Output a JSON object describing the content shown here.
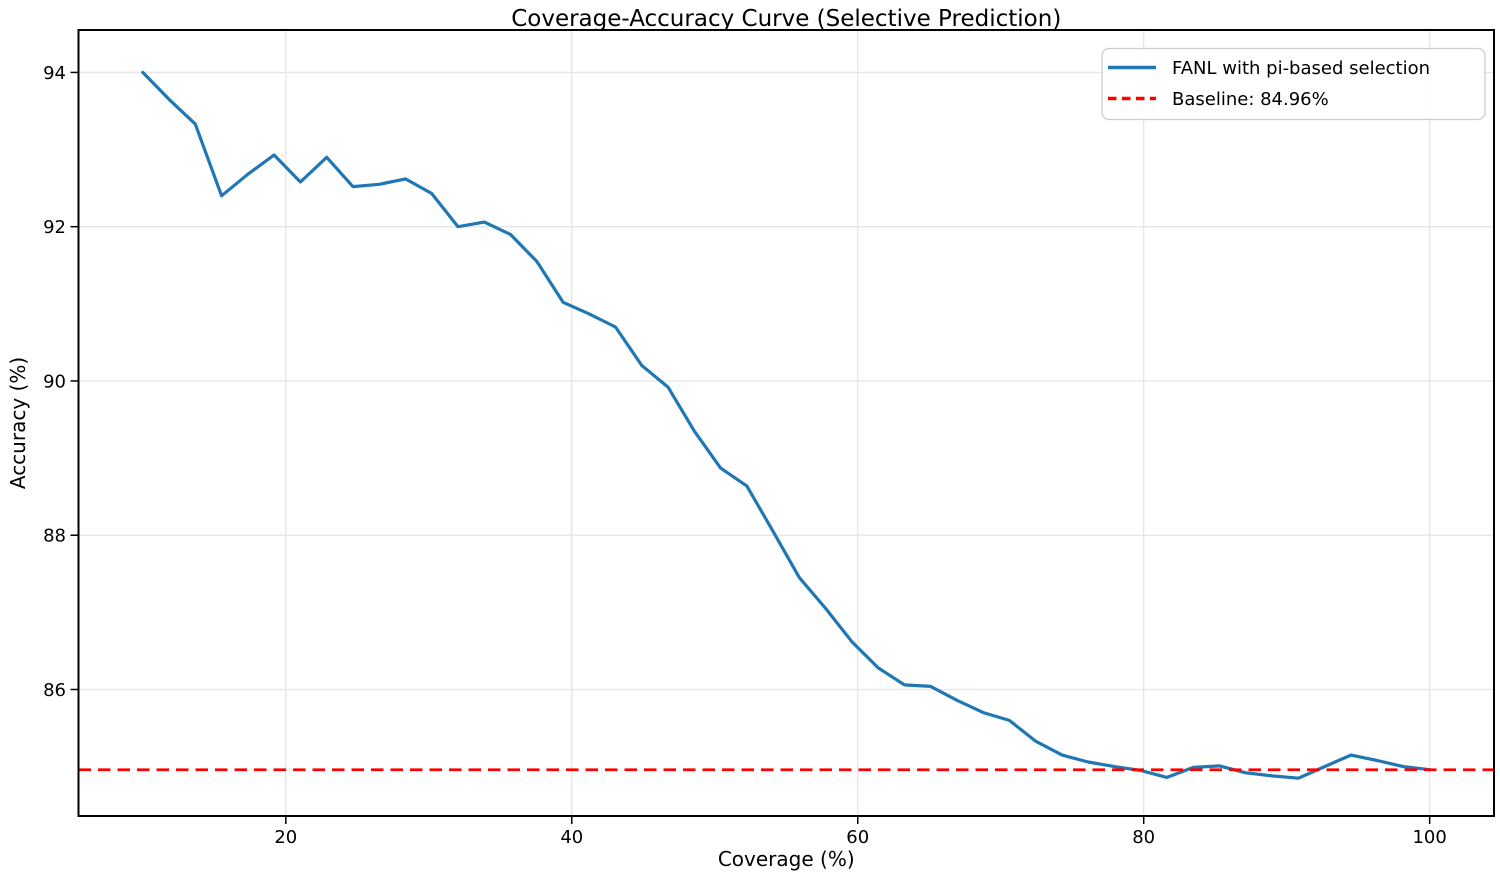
{
  "figure": {
    "title": "Coverage-Accuracy Curve (Selective Prediction)",
    "xlabel": "Coverage (%)",
    "ylabel": "Accuracy (%)"
  },
  "legend": {
    "position": "upper right",
    "items": [
      {
        "label": "FANL with pi-based selection",
        "color": "#1f77b4",
        "line_style": "solid"
      },
      {
        "label": "Baseline: 84.96%",
        "color": "#ff0000",
        "line_style": "dashed"
      }
    ]
  },
  "colors": {
    "series_line": "#1f77b4",
    "baseline_line": "#ff0000",
    "grid": "#e5e5e5",
    "spine": "#000000",
    "text": "#000000",
    "legend_border": "#cccccc",
    "background": "#ffffff"
  },
  "chart_data": {
    "type": "line",
    "title": "Coverage-Accuracy Curve (Selective Prediction)",
    "xlabel": "Coverage (%)",
    "ylabel": "Accuracy (%)",
    "xlim": [
      5.5,
      104.5
    ],
    "ylim": [
      84.36,
      94.55
    ],
    "xticks": [
      20,
      40,
      60,
      80,
      100
    ],
    "yticks": [
      86,
      88,
      90,
      92,
      94
    ],
    "grid": true,
    "legend_position": "upper right",
    "baseline_value": 84.96,
    "series": [
      {
        "name": "FANL with pi-based selection",
        "kind": "line",
        "color": "#1f77b4",
        "style": "solid",
        "x": [
          10.0,
          11.84,
          13.67,
          15.51,
          17.35,
          19.18,
          21.02,
          22.86,
          24.69,
          26.53,
          28.37,
          30.2,
          32.04,
          33.88,
          35.71,
          37.55,
          39.39,
          41.22,
          43.06,
          44.9,
          46.73,
          48.57,
          50.41,
          52.24,
          54.08,
          55.92,
          57.76,
          59.59,
          61.43,
          63.27,
          65.1,
          66.94,
          68.78,
          70.61,
          72.45,
          74.29,
          76.12,
          77.96,
          79.8,
          81.63,
          83.47,
          85.31,
          87.14,
          88.98,
          90.82,
          92.65,
          94.49,
          96.33,
          98.16,
          100.0
        ],
        "y": [
          94.0,
          93.65,
          93.33,
          92.4,
          92.68,
          92.93,
          92.58,
          92.9,
          92.52,
          92.55,
          92.62,
          92.43,
          92.0,
          92.06,
          91.9,
          91.55,
          91.02,
          90.87,
          90.7,
          90.2,
          89.92,
          89.35,
          88.87,
          88.64,
          88.05,
          87.45,
          87.05,
          86.62,
          86.28,
          86.06,
          86.04,
          85.86,
          85.7,
          85.6,
          85.33,
          85.15,
          85.06,
          85.0,
          84.95,
          84.86,
          84.99,
          85.01,
          84.92,
          84.88,
          84.85,
          85.0,
          85.15,
          85.08,
          85.0,
          84.96
        ]
      },
      {
        "name": "Baseline: 84.96%",
        "kind": "hline",
        "color": "#ff0000",
        "style": "dashed",
        "y": 84.96
      }
    ]
  }
}
